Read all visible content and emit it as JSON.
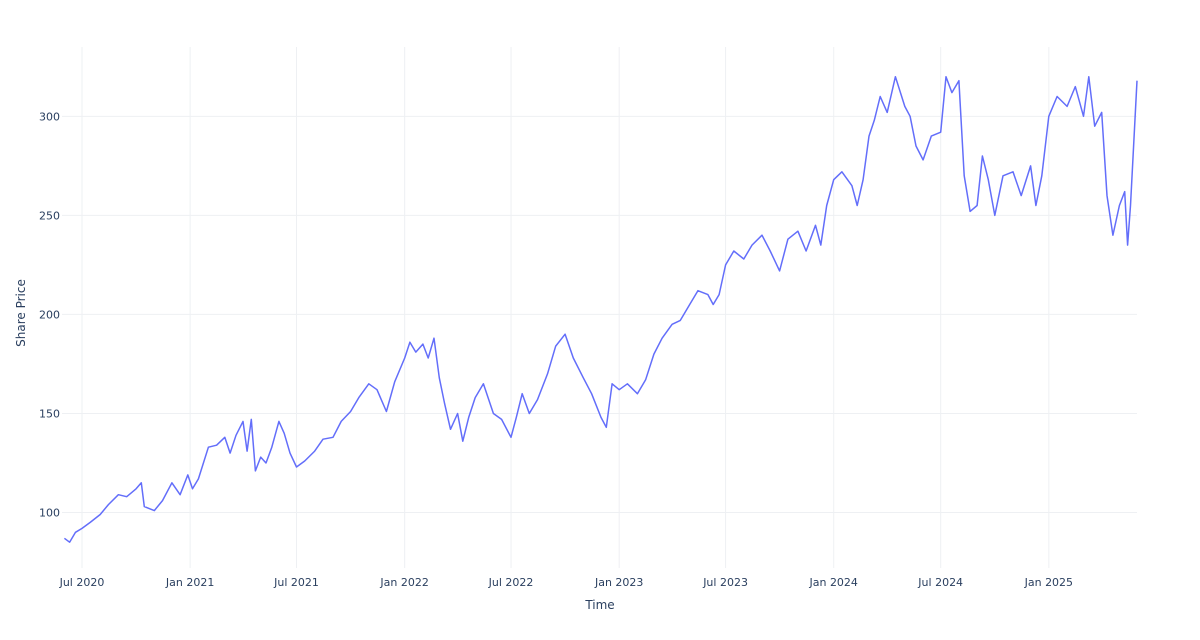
{
  "chart_data": {
    "type": "line",
    "title": "",
    "xlabel": "Time",
    "ylabel": "Share Price",
    "xlim": [
      "2020-05-28",
      "2025-05-31"
    ],
    "ylim": [
      72,
      335
    ],
    "grid": true,
    "color": "#636efa",
    "x_ticks": [
      {
        "date": "2020-07-01",
        "label": "Jul 2020"
      },
      {
        "date": "2021-01-01",
        "label": "Jan 2021"
      },
      {
        "date": "2021-07-01",
        "label": "Jul 2021"
      },
      {
        "date": "2022-01-01",
        "label": "Jan 2022"
      },
      {
        "date": "2022-07-01",
        "label": "Jul 2022"
      },
      {
        "date": "2023-01-01",
        "label": "Jan 2023"
      },
      {
        "date": "2023-07-01",
        "label": "Jul 2023"
      },
      {
        "date": "2024-01-01",
        "label": "Jan 2024"
      },
      {
        "date": "2024-07-01",
        "label": "Jul 2024"
      },
      {
        "date": "2025-01-01",
        "label": "Jan 2025"
      }
    ],
    "y_ticks": [
      {
        "value": 100,
        "label": "100"
      },
      {
        "value": 150,
        "label": "150"
      },
      {
        "value": 200,
        "label": "200"
      },
      {
        "value": 250,
        "label": "250"
      },
      {
        "value": 300,
        "label": "300"
      }
    ],
    "series": [
      {
        "points": [
          [
            "2020-06-01",
            87
          ],
          [
            "2020-06-10",
            85
          ],
          [
            "2020-06-20",
            90
          ],
          [
            "2020-07-01",
            92
          ],
          [
            "2020-07-15",
            95
          ],
          [
            "2020-08-01",
            99
          ],
          [
            "2020-08-15",
            104
          ],
          [
            "2020-09-01",
            109
          ],
          [
            "2020-09-15",
            108
          ],
          [
            "2020-10-01",
            112
          ],
          [
            "2020-10-10",
            115
          ],
          [
            "2020-10-15",
            103
          ],
          [
            "2020-11-01",
            101
          ],
          [
            "2020-11-15",
            106
          ],
          [
            "2020-12-01",
            115
          ],
          [
            "2020-12-15",
            109
          ],
          [
            "2020-12-28",
            119
          ],
          [
            "2021-01-05",
            112
          ],
          [
            "2021-01-15",
            117
          ],
          [
            "2021-02-01",
            133
          ],
          [
            "2021-02-15",
            134
          ],
          [
            "2021-03-01",
            138
          ],
          [
            "2021-03-10",
            130
          ],
          [
            "2021-03-20",
            139
          ],
          [
            "2021-04-01",
            146
          ],
          [
            "2021-04-08",
            131
          ],
          [
            "2021-04-15",
            147
          ],
          [
            "2021-04-22",
            121
          ],
          [
            "2021-05-01",
            128
          ],
          [
            "2021-05-10",
            125
          ],
          [
            "2021-05-20",
            133
          ],
          [
            "2021-06-01",
            146
          ],
          [
            "2021-06-10",
            140
          ],
          [
            "2021-06-20",
            130
          ],
          [
            "2021-07-01",
            123
          ],
          [
            "2021-07-15",
            126
          ],
          [
            "2021-08-01",
            131
          ],
          [
            "2021-08-15",
            137
          ],
          [
            "2021-09-01",
            138
          ],
          [
            "2021-09-15",
            146
          ],
          [
            "2021-10-01",
            151
          ],
          [
            "2021-10-15",
            158
          ],
          [
            "2021-11-01",
            165
          ],
          [
            "2021-11-15",
            162
          ],
          [
            "2021-12-01",
            151
          ],
          [
            "2021-12-15",
            166
          ],
          [
            "2022-01-01",
            178
          ],
          [
            "2022-01-10",
            186
          ],
          [
            "2022-01-20",
            181
          ],
          [
            "2022-02-01",
            185
          ],
          [
            "2022-02-10",
            178
          ],
          [
            "2022-02-20",
            188
          ],
          [
            "2022-03-01",
            168
          ],
          [
            "2022-03-10",
            155
          ],
          [
            "2022-03-20",
            142
          ],
          [
            "2022-04-01",
            150
          ],
          [
            "2022-04-10",
            136
          ],
          [
            "2022-04-20",
            148
          ],
          [
            "2022-05-01",
            158
          ],
          [
            "2022-05-15",
            165
          ],
          [
            "2022-06-01",
            150
          ],
          [
            "2022-06-15",
            147
          ],
          [
            "2022-07-01",
            138
          ],
          [
            "2022-07-10",
            148
          ],
          [
            "2022-07-20",
            160
          ],
          [
            "2022-08-01",
            150
          ],
          [
            "2022-08-15",
            157
          ],
          [
            "2022-09-01",
            170
          ],
          [
            "2022-09-15",
            184
          ],
          [
            "2022-10-01",
            190
          ],
          [
            "2022-10-15",
            178
          ],
          [
            "2022-11-01",
            168
          ],
          [
            "2022-11-15",
            160
          ],
          [
            "2022-12-01",
            148
          ],
          [
            "2022-12-10",
            143
          ],
          [
            "2022-12-20",
            165
          ],
          [
            "2023-01-01",
            162
          ],
          [
            "2023-01-15",
            165
          ],
          [
            "2023-02-01",
            160
          ],
          [
            "2023-02-15",
            167
          ],
          [
            "2023-03-01",
            180
          ],
          [
            "2023-03-15",
            188
          ],
          [
            "2023-04-01",
            195
          ],
          [
            "2023-04-15",
            197
          ],
          [
            "2023-05-01",
            205
          ],
          [
            "2023-05-15",
            212
          ],
          [
            "2023-06-01",
            210
          ],
          [
            "2023-06-10",
            205
          ],
          [
            "2023-06-20",
            210
          ],
          [
            "2023-07-01",
            225
          ],
          [
            "2023-07-15",
            232
          ],
          [
            "2023-08-01",
            228
          ],
          [
            "2023-08-15",
            235
          ],
          [
            "2023-09-01",
            240
          ],
          [
            "2023-09-15",
            232
          ],
          [
            "2023-10-01",
            222
          ],
          [
            "2023-10-15",
            238
          ],
          [
            "2023-11-01",
            242
          ],
          [
            "2023-11-15",
            232
          ],
          [
            "2023-12-01",
            245
          ],
          [
            "2023-12-10",
            235
          ],
          [
            "2023-12-20",
            255
          ],
          [
            "2024-01-01",
            268
          ],
          [
            "2024-01-15",
            272
          ],
          [
            "2024-02-01",
            265
          ],
          [
            "2024-02-10",
            255
          ],
          [
            "2024-02-20",
            268
          ],
          [
            "2024-03-01",
            290
          ],
          [
            "2024-03-10",
            298
          ],
          [
            "2024-03-20",
            310
          ],
          [
            "2024-04-01",
            302
          ],
          [
            "2024-04-15",
            320
          ],
          [
            "2024-05-01",
            305
          ],
          [
            "2024-05-10",
            300
          ],
          [
            "2024-05-20",
            285
          ],
          [
            "2024-06-01",
            278
          ],
          [
            "2024-06-15",
            290
          ],
          [
            "2024-07-01",
            292
          ],
          [
            "2024-07-10",
            320
          ],
          [
            "2024-07-20",
            312
          ],
          [
            "2024-08-01",
            318
          ],
          [
            "2024-08-10",
            270
          ],
          [
            "2024-08-20",
            252
          ],
          [
            "2024-09-01",
            255
          ],
          [
            "2024-09-10",
            280
          ],
          [
            "2024-09-20",
            268
          ],
          [
            "2024-10-01",
            250
          ],
          [
            "2024-10-15",
            270
          ],
          [
            "2024-11-01",
            272
          ],
          [
            "2024-11-15",
            260
          ],
          [
            "2024-12-01",
            275
          ],
          [
            "2024-12-10",
            255
          ],
          [
            "2024-12-20",
            270
          ],
          [
            "2025-01-01",
            300
          ],
          [
            "2025-01-15",
            310
          ],
          [
            "2025-02-01",
            305
          ],
          [
            "2025-02-15",
            315
          ],
          [
            "2025-03-01",
            300
          ],
          [
            "2025-03-10",
            320
          ],
          [
            "2025-03-20",
            295
          ],
          [
            "2025-04-01",
            302
          ],
          [
            "2025-04-10",
            260
          ],
          [
            "2025-04-20",
            240
          ],
          [
            "2025-05-01",
            255
          ],
          [
            "2025-05-10",
            262
          ],
          [
            "2025-05-15",
            235
          ],
          [
            "2025-05-20",
            255
          ],
          [
            "2025-05-31",
            318
          ]
        ]
      }
    ]
  }
}
